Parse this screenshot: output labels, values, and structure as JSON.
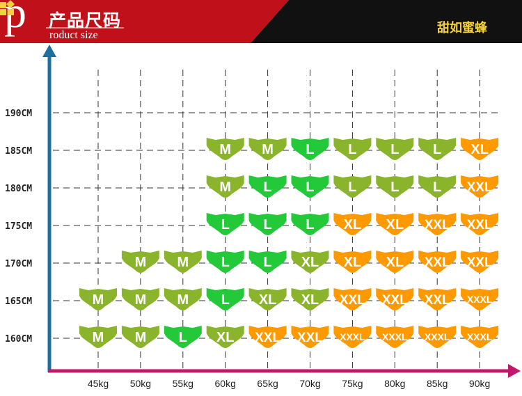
{
  "header": {
    "letter": "p",
    "title": "产品尺码",
    "subtitle": "roduct size",
    "brand": "甜如蜜蜂"
  },
  "colors": {
    "header_red": "#c0111a",
    "header_black": "#111111",
    "y_axis": "#1f6f9e",
    "x_axis": "#c2186a",
    "M": "#8ab42c",
    "L": "#24c93a",
    "XL_green": "#8ab42c",
    "XL_orange": "#ff9900",
    "XXL": "#ff9900",
    "XXXL": "#ff9900"
  },
  "chart_data": {
    "type": "table",
    "x_categories": [
      "45kg",
      "50kg",
      "55kg",
      "60kg",
      "65kg",
      "70kg",
      "75kg",
      "80kg",
      "85kg",
      "90kg"
    ],
    "y_categories": [
      "160CM",
      "165CM",
      "170CM",
      "175CM",
      "180CM",
      "185CM",
      "190CM"
    ],
    "grid": true,
    "cells": [
      {
        "x": "45kg",
        "y": "160CM",
        "size": "M",
        "color": "olive"
      },
      {
        "x": "50kg",
        "y": "160CM",
        "size": "M",
        "color": "olive"
      },
      {
        "x": "55kg",
        "y": "160CM",
        "size": "L",
        "color": "green"
      },
      {
        "x": "60kg",
        "y": "160CM",
        "size": "XL",
        "color": "olive"
      },
      {
        "x": "65kg",
        "y": "160CM",
        "size": "XXL",
        "color": "orange"
      },
      {
        "x": "70kg",
        "y": "160CM",
        "size": "XXL",
        "color": "orange"
      },
      {
        "x": "75kg",
        "y": "160CM",
        "size": "XXXL",
        "color": "orange"
      },
      {
        "x": "80kg",
        "y": "160CM",
        "size": "XXXL",
        "color": "orange"
      },
      {
        "x": "85kg",
        "y": "160CM",
        "size": "XXXL",
        "color": "orange"
      },
      {
        "x": "90kg",
        "y": "160CM",
        "size": "XXXL",
        "color": "orange"
      },
      {
        "x": "45kg",
        "y": "165CM",
        "size": "M",
        "color": "olive"
      },
      {
        "x": "50kg",
        "y": "165CM",
        "size": "M",
        "color": "olive"
      },
      {
        "x": "55kg",
        "y": "165CM",
        "size": "M",
        "color": "olive"
      },
      {
        "x": "60kg",
        "y": "165CM",
        "size": "L",
        "color": "green"
      },
      {
        "x": "65kg",
        "y": "165CM",
        "size": "XL",
        "color": "olive"
      },
      {
        "x": "70kg",
        "y": "165CM",
        "size": "XL",
        "color": "olive"
      },
      {
        "x": "75kg",
        "y": "165CM",
        "size": "XXL",
        "color": "orange"
      },
      {
        "x": "80kg",
        "y": "165CM",
        "size": "XXL",
        "color": "orange"
      },
      {
        "x": "85kg",
        "y": "165CM",
        "size": "XXL",
        "color": "orange"
      },
      {
        "x": "90kg",
        "y": "165CM",
        "size": "XXXL",
        "color": "orange"
      },
      {
        "x": "50kg",
        "y": "170CM",
        "size": "M",
        "color": "olive"
      },
      {
        "x": "55kg",
        "y": "170CM",
        "size": "M",
        "color": "olive"
      },
      {
        "x": "60kg",
        "y": "170CM",
        "size": "L",
        "color": "green"
      },
      {
        "x": "65kg",
        "y": "170CM",
        "size": "L",
        "color": "green"
      },
      {
        "x": "70kg",
        "y": "170CM",
        "size": "XL",
        "color": "olive"
      },
      {
        "x": "75kg",
        "y": "170CM",
        "size": "XL",
        "color": "orange"
      },
      {
        "x": "80kg",
        "y": "170CM",
        "size": "XL",
        "color": "orange"
      },
      {
        "x": "85kg",
        "y": "170CM",
        "size": "XXL",
        "color": "orange"
      },
      {
        "x": "90kg",
        "y": "170CM",
        "size": "XXL",
        "color": "orange"
      },
      {
        "x": "60kg",
        "y": "175CM",
        "size": "L",
        "color": "green"
      },
      {
        "x": "65kg",
        "y": "175CM",
        "size": "L",
        "color": "green"
      },
      {
        "x": "70kg",
        "y": "175CM",
        "size": "L",
        "color": "green"
      },
      {
        "x": "75kg",
        "y": "175CM",
        "size": "XL",
        "color": "orange"
      },
      {
        "x": "80kg",
        "y": "175CM",
        "size": "XL",
        "color": "orange"
      },
      {
        "x": "85kg",
        "y": "175CM",
        "size": "XXL",
        "color": "orange"
      },
      {
        "x": "90kg",
        "y": "175CM",
        "size": "XXL",
        "color": "orange"
      },
      {
        "x": "60kg",
        "y": "180CM",
        "size": "M",
        "color": "olive"
      },
      {
        "x": "65kg",
        "y": "180CM",
        "size": "L",
        "color": "green"
      },
      {
        "x": "70kg",
        "y": "180CM",
        "size": "L",
        "color": "green"
      },
      {
        "x": "75kg",
        "y": "180CM",
        "size": "L",
        "color": "olive"
      },
      {
        "x": "80kg",
        "y": "180CM",
        "size": "L",
        "color": "olive"
      },
      {
        "x": "85kg",
        "y": "180CM",
        "size": "L",
        "color": "olive"
      },
      {
        "x": "90kg",
        "y": "180CM",
        "size": "XXL",
        "color": "orange"
      },
      {
        "x": "60kg",
        "y": "185CM",
        "size": "M",
        "color": "olive"
      },
      {
        "x": "65kg",
        "y": "185CM",
        "size": "M",
        "color": "olive"
      },
      {
        "x": "70kg",
        "y": "185CM",
        "size": "L",
        "color": "green"
      },
      {
        "x": "75kg",
        "y": "185CM",
        "size": "L",
        "color": "olive"
      },
      {
        "x": "80kg",
        "y": "185CM",
        "size": "L",
        "color": "olive"
      },
      {
        "x": "85kg",
        "y": "185CM",
        "size": "L",
        "color": "olive"
      },
      {
        "x": "90kg",
        "y": "185CM",
        "size": "XL",
        "color": "orange"
      }
    ]
  }
}
